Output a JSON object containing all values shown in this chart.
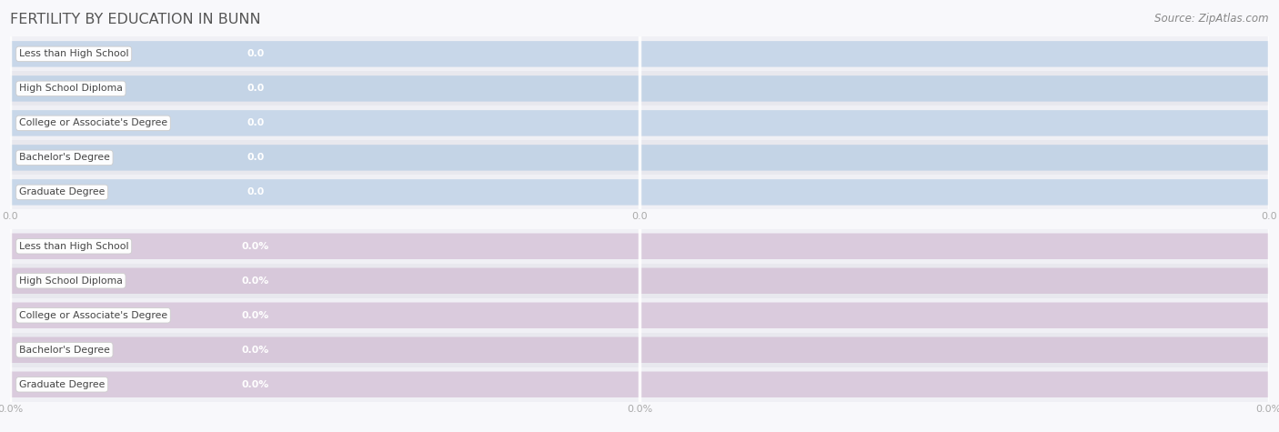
{
  "title": "FERTILITY BY EDUCATION IN BUNN",
  "source": "Source: ZipAtlas.com",
  "categories": [
    "Less than High School",
    "High School Diploma",
    "College or Associate's Degree",
    "Bachelor's Degree",
    "Graduate Degree"
  ],
  "top_values": [
    0.0,
    0.0,
    0.0,
    0.0,
    0.0
  ],
  "bottom_values": [
    0.0,
    0.0,
    0.0,
    0.0,
    0.0
  ],
  "top_bar_color": "#a8c4e0",
  "bottom_bar_color": "#c9aecb",
  "top_value_color": "#ffffff",
  "bottom_value_color": "#ffffff",
  "row_bg_even": "#f0f0f5",
  "row_bg_odd": "#e8e8ee",
  "fig_bg": "#f8f8fb",
  "title_color": "#555555",
  "source_color": "#888888",
  "tick_color": "#aaaaaa",
  "label_text_color": "#444444",
  "label_border_color": "#cccccc",
  "figsize": [
    14.06,
    4.75
  ],
  "dpi": 100,
  "top_xtick_labels": [
    "0.0",
    "0.0",
    "0.0"
  ],
  "bottom_xtick_labels": [
    "0.0%",
    "0.0%",
    "0.0%"
  ]
}
